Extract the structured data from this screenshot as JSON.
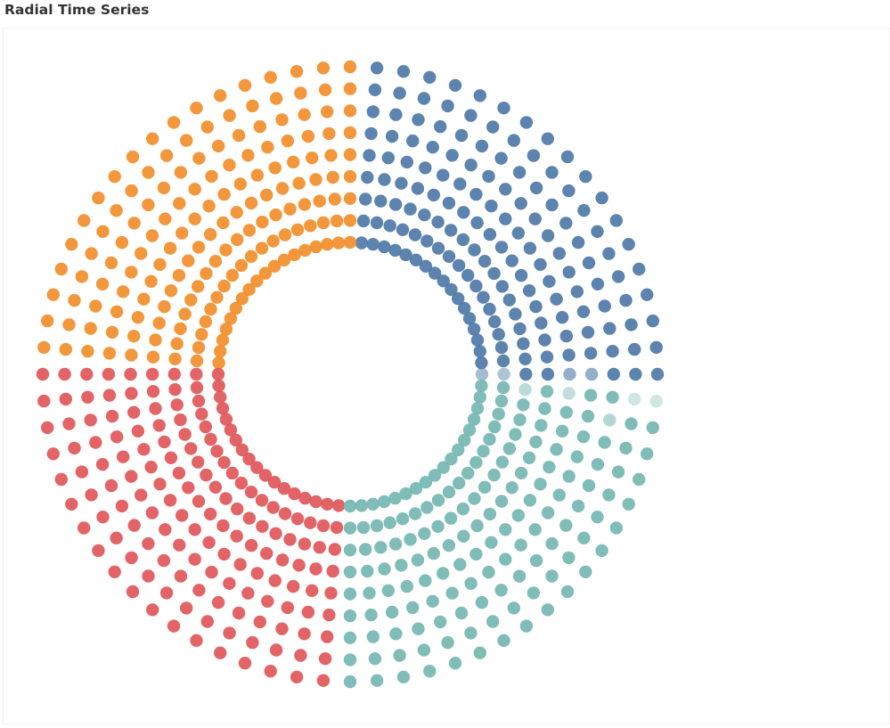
{
  "page": {
    "title": "Radial Time Series"
  },
  "chart_data": {
    "type": "scatter",
    "subtype": "radial-dot-plot",
    "title": "Radial Time Series",
    "spokes_per_quadrant": 18,
    "dots_per_spoke": 9,
    "rings": {
      "count": 9
    },
    "quadrants": [
      {
        "color": "#4e79a7",
        "start_deg": 0,
        "end_deg": 85.5
      },
      {
        "color": "#f28e2b",
        "start_deg": 90,
        "end_deg": 175.5
      },
      {
        "color": "#e15759",
        "start_deg": 180,
        "end_deg": 265.5
      },
      {
        "color": "#76b7b2",
        "start_deg": 270,
        "end_deg": 355.5
      }
    ],
    "faded_points": [
      {
        "spoke": 0,
        "ring": 0,
        "opacity": 0.5
      },
      {
        "spoke": 0,
        "ring": 1,
        "opacity": 0.45
      },
      {
        "spoke": 0,
        "ring": 4,
        "opacity": 0.6
      },
      {
        "spoke": 0,
        "ring": 5,
        "opacity": 0.6
      },
      {
        "spoke": 71,
        "ring": 2,
        "opacity": 0.5
      },
      {
        "spoke": 71,
        "ring": 4,
        "opacity": 0.45
      },
      {
        "spoke": 71,
        "ring": 7,
        "opacity": 0.35
      },
      {
        "spoke": 71,
        "ring": 8,
        "opacity": 0.35
      },
      {
        "spoke": 70,
        "ring": 6,
        "opacity": 0.55
      }
    ]
  }
}
